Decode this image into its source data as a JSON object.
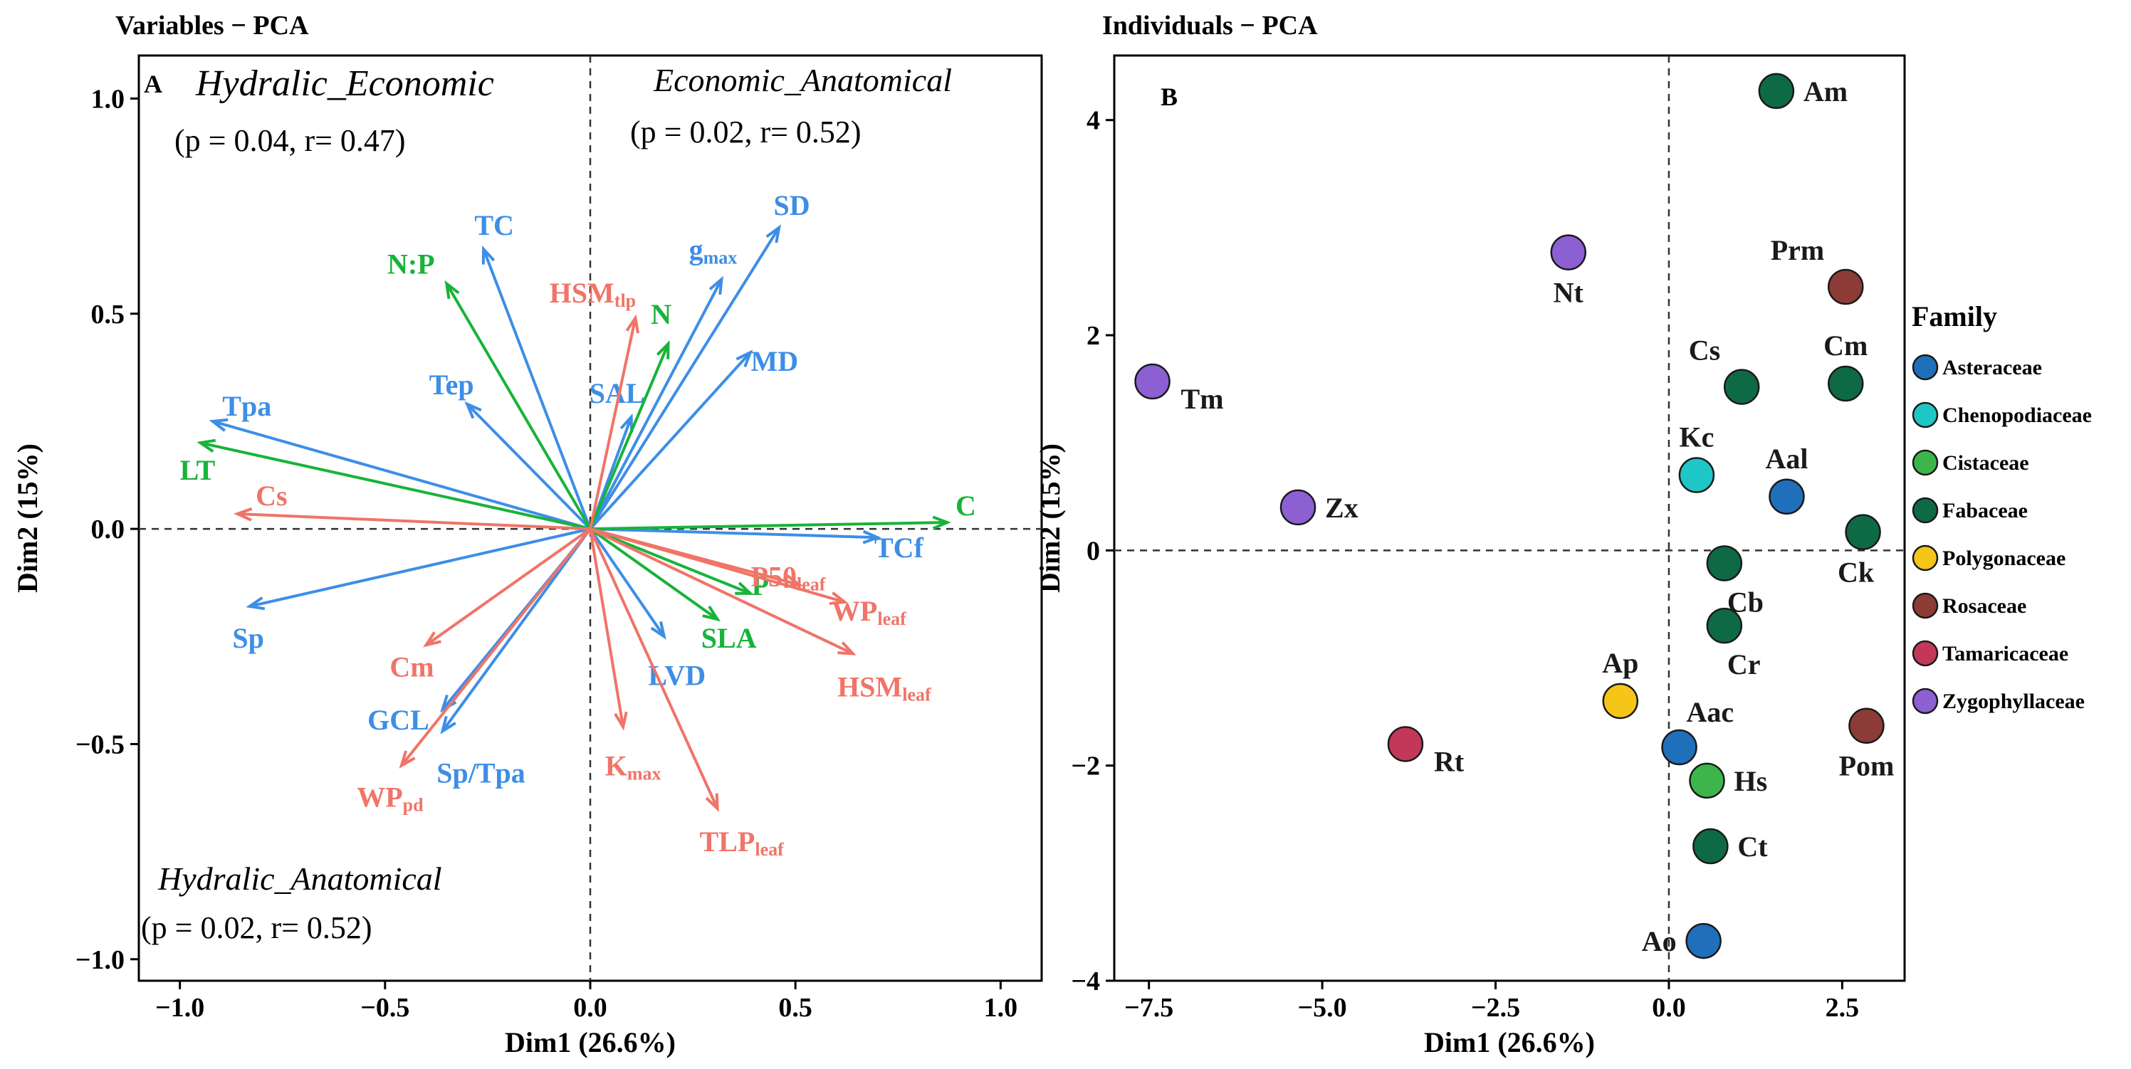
{
  "chart_data": [
    {
      "type": "scatter",
      "subtype": "pca-variables-biplot",
      "title": "Variables − PCA",
      "panel_label": "A",
      "xlabel": "Dim1 (26.6%)",
      "ylabel": "Dim2 (15%)",
      "xlim": [
        -1.1,
        1.1
      ],
      "ylim": [
        -1.05,
        1.1
      ],
      "x_ticks": [
        -1.0,
        -0.5,
        0.0,
        0.5,
        1.0
      ],
      "x_tick_labels": [
        "−1.0",
        "−0.5",
        "0.0",
        "0.5",
        "1.0"
      ],
      "y_ticks": [
        -1.0,
        -0.5,
        0.0,
        0.5,
        1.0
      ],
      "y_tick_labels": [
        "−1.0",
        "−0.5",
        "0.0",
        "0.5",
        "1.0"
      ],
      "colors": {
        "blue": "#3d8ee6",
        "green": "#18b33a",
        "red": "#f07468"
      },
      "quadrant_labels": [
        {
          "title": "Hydralic_Economic",
          "stats": "(p = 0.04, r= 0.47)",
          "pos": "top-left"
        },
        {
          "title": "Economic_Anatomical",
          "stats": "(p = 0.02, r= 0.52)",
          "pos": "top-right"
        },
        {
          "title": "Hydralic_Anatomical",
          "stats": "(p = 0.02, r= 0.52)",
          "pos": "bottom-left"
        }
      ],
      "vectors": [
        {
          "name": "TC",
          "x": -0.26,
          "y": 0.65,
          "group": "blue"
        },
        {
          "name": "SD",
          "x": 0.46,
          "y": 0.7,
          "group": "blue"
        },
        {
          "name": "gmax",
          "x": 0.32,
          "y": 0.58,
          "group": "blue"
        },
        {
          "name": "MD",
          "x": 0.39,
          "y": 0.41,
          "group": "blue"
        },
        {
          "name": "Tpa",
          "x": -0.92,
          "y": 0.25,
          "group": "blue"
        },
        {
          "name": "Tep",
          "x": -0.3,
          "y": 0.29,
          "group": "blue"
        },
        {
          "name": "SAL",
          "x": 0.1,
          "y": 0.26,
          "group": "blue"
        },
        {
          "name": "TCf",
          "x": 0.7,
          "y": -0.02,
          "group": "blue"
        },
        {
          "name": "Sp",
          "x": -0.83,
          "y": -0.18,
          "group": "blue"
        },
        {
          "name": "LVD",
          "x": 0.18,
          "y": -0.25,
          "group": "blue"
        },
        {
          "name": "GCL",
          "x": -0.36,
          "y": -0.42,
          "group": "blue"
        },
        {
          "name": "Sp/Tpa",
          "x": -0.36,
          "y": -0.47,
          "group": "blue"
        },
        {
          "name": "N:P",
          "x": -0.35,
          "y": 0.57,
          "group": "green"
        },
        {
          "name": "N",
          "x": 0.19,
          "y": 0.43,
          "group": "green"
        },
        {
          "name": "LT",
          "x": -0.95,
          "y": 0.2,
          "group": "green"
        },
        {
          "name": "C",
          "x": 0.87,
          "y": 0.015,
          "group": "green"
        },
        {
          "name": "P",
          "x": 0.39,
          "y": -0.15,
          "group": "green"
        },
        {
          "name": "SLA",
          "x": 0.31,
          "y": -0.21,
          "group": "green"
        },
        {
          "name": "HSMtlp",
          "x": 0.11,
          "y": 0.49,
          "group": "red"
        },
        {
          "name": "Cs",
          "x": -0.86,
          "y": 0.035,
          "group": "red"
        },
        {
          "name": "P50leaf",
          "x": 0.51,
          "y": -0.13,
          "group": "red"
        },
        {
          "name": "WPleaf",
          "x": 0.62,
          "y": -0.17,
          "group": "red"
        },
        {
          "name": "HSMleaf",
          "x": 0.64,
          "y": -0.29,
          "group": "red"
        },
        {
          "name": "Cm",
          "x": -0.4,
          "y": -0.27,
          "group": "red"
        },
        {
          "name": "WPpd",
          "x": -0.46,
          "y": -0.55,
          "group": "red"
        },
        {
          "name": "Kmax",
          "x": 0.08,
          "y": -0.46,
          "group": "red"
        },
        {
          "name": "TLPleaf",
          "x": 0.31,
          "y": -0.65,
          "group": "red"
        }
      ]
    },
    {
      "type": "scatter",
      "subtype": "pca-individuals",
      "title": "Individuals − PCA",
      "panel_label": "B",
      "xlabel": "Dim1 (26.6%)",
      "ylabel": "Dim2 (15%)",
      "xlim": [
        -8.0,
        3.4
      ],
      "ylim": [
        -4.0,
        4.6
      ],
      "x_ticks": [
        -7.5,
        -5.0,
        -2.5,
        0.0,
        2.5
      ],
      "x_tick_labels": [
        "−7.5",
        "−5.0",
        "−2.5",
        "0.0",
        "2.5"
      ],
      "y_ticks": [
        -4,
        -2,
        0,
        2,
        4
      ],
      "y_tick_labels": [
        "−4",
        "−2",
        "0",
        "2",
        "4"
      ],
      "legend": {
        "title": "Family",
        "position": "right",
        "entries": [
          {
            "name": "Asteraceae",
            "color": "#1f6fba"
          },
          {
            "name": "Chenopodiaceae",
            "color": "#1fc6c6"
          },
          {
            "name": "Cistaceae",
            "color": "#3db54a"
          },
          {
            "name": "Fabaceae",
            "color": "#0e6a45"
          },
          {
            "name": "Polygonaceae",
            "color": "#f5c518"
          },
          {
            "name": "Rosaceae",
            "color": "#8c3b36"
          },
          {
            "name": "Tamaricaceae",
            "color": "#c33859"
          },
          {
            "name": "Zygophyllaceae",
            "color": "#8c5fd3"
          }
        ]
      },
      "points": [
        {
          "name": "Am",
          "x": 1.55,
          "y": 4.27,
          "family": "Fabaceae",
          "label": "right"
        },
        {
          "name": "Nt",
          "x": -1.45,
          "y": 2.77,
          "family": "Zygophyllaceae",
          "label": "below"
        },
        {
          "name": "Prm",
          "x": 2.55,
          "y": 2.45,
          "family": "Rosaceae",
          "label": "above-left"
        },
        {
          "name": "Cm",
          "x": 2.55,
          "y": 1.55,
          "family": "Fabaceae",
          "label": "above"
        },
        {
          "name": "Cs",
          "x": 1.05,
          "y": 1.52,
          "family": "Fabaceae",
          "label": "above-left"
        },
        {
          "name": "Tm",
          "x": -7.45,
          "y": 1.57,
          "family": "Zygophyllaceae",
          "label": "right-below"
        },
        {
          "name": "Kc",
          "x": 0.4,
          "y": 0.7,
          "family": "Chenopodiaceae",
          "label": "above"
        },
        {
          "name": "Aal",
          "x": 1.7,
          "y": 0.5,
          "family": "Asteraceae",
          "label": "above"
        },
        {
          "name": "Zx",
          "x": -5.35,
          "y": 0.4,
          "family": "Zygophyllaceae",
          "label": "right"
        },
        {
          "name": "Ck",
          "x": 2.8,
          "y": 0.17,
          "family": "Fabaceae",
          "label": "below-left"
        },
        {
          "name": "Cb",
          "x": 0.8,
          "y": -0.12,
          "family": "Fabaceae",
          "label": "below-right"
        },
        {
          "name": "Cr",
          "x": 0.8,
          "y": -0.7,
          "family": "Fabaceae",
          "label": "below-right"
        },
        {
          "name": "Ap",
          "x": -0.7,
          "y": -1.4,
          "family": "Polygonaceae",
          "label": "above"
        },
        {
          "name": "Aac",
          "x": 0.15,
          "y": -1.83,
          "family": "Asteraceae",
          "label": "above-right"
        },
        {
          "name": "Pom",
          "x": 2.85,
          "y": -1.63,
          "family": "Rosaceae",
          "label": "below"
        },
        {
          "name": "Rt",
          "x": -3.8,
          "y": -1.8,
          "family": "Tamaricaceae",
          "label": "right-below"
        },
        {
          "name": "Hs",
          "x": 0.55,
          "y": -2.14,
          "family": "Cistaceae",
          "label": "right"
        },
        {
          "name": "Ct",
          "x": 0.6,
          "y": -2.75,
          "family": "Fabaceae",
          "label": "right"
        },
        {
          "name": "Ao",
          "x": 0.5,
          "y": -3.63,
          "family": "Asteraceae",
          "label": "left"
        }
      ]
    }
  ]
}
